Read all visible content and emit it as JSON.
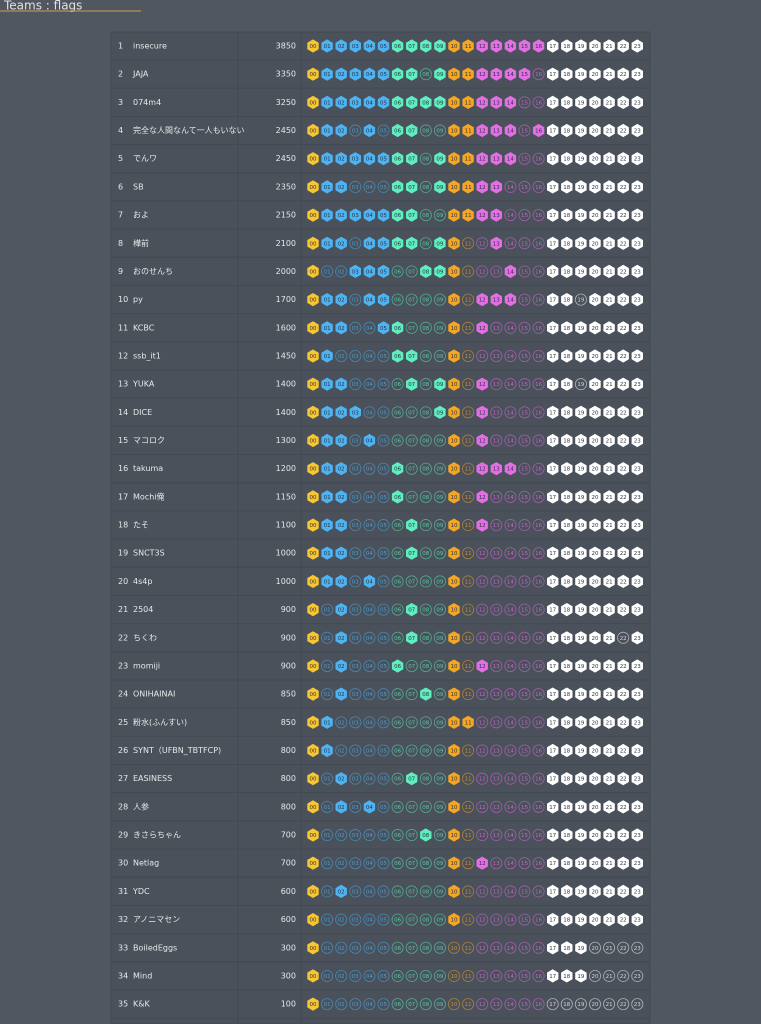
{
  "header": {
    "title": "Teams : flags"
  },
  "flags": [
    "00",
    "01",
    "02",
    "03",
    "04",
    "05",
    "06",
    "07",
    "08",
    "09",
    "10",
    "11",
    "12",
    "13",
    "14",
    "15",
    "16",
    "17",
    "18",
    "19",
    "20",
    "21",
    "22",
    "23"
  ],
  "flag_colors": [
    "#f7c631",
    "#4db3f2",
    "#4db3f2",
    "#4db3f2",
    "#4db3f2",
    "#4db3f2",
    "#5eeec0",
    "#5eeec0",
    "#5eeec0",
    "#5eeec0",
    "#f5a623",
    "#f5a623",
    "#e46ee6",
    "#e46ee6",
    "#e46ee6",
    "#e46ee6",
    "#e46ee6",
    "#ffffff",
    "#ffffff",
    "#ffffff",
    "#ffffff",
    "#ffffff",
    "#ffffff",
    "#ffffff"
  ],
  "teams": [
    {
      "rank": "1",
      "name": "insecure",
      "score": "3850",
      "solved": "111111111111111111111111"
    },
    {
      "rank": "2",
      "name": "JAJA",
      "score": "3350",
      "solved": "111111110111111101111111"
    },
    {
      "rank": "3",
      "name": "074m4",
      "score": "3250",
      "solved": "111111111111111001111111"
    },
    {
      "rank": "4",
      "name": "完全な人間なんて一人もいない",
      "score": "2450",
      "solved": "111010110011111011111111"
    },
    {
      "rank": "5",
      "name": "でんワ",
      "score": "2450",
      "solved": "111111110111111001111111"
    },
    {
      "rank": "6",
      "name": "SB",
      "score": "2350",
      "solved": "111000110111110001111111"
    },
    {
      "rank": "7",
      "name": "およ",
      "score": "2150",
      "solved": "111111110011110001111111"
    },
    {
      "rank": "8",
      "name": "樺前",
      "score": "2100",
      "solved": "111011110110010001111111"
    },
    {
      "rank": "9",
      "name": "おのせんち",
      "score": "2000",
      "solved": "100111001110001001111111"
    },
    {
      "rank": "10",
      "name": "py",
      "score": "1700",
      "solved": "111011000010111001101111"
    },
    {
      "rank": "11",
      "name": "KCBC",
      "score": "1600",
      "solved": "111001100010100001111111"
    },
    {
      "rank": "12",
      "name": "ssb_it1",
      "score": "1450",
      "solved": "110000110010000001111111"
    },
    {
      "rank": "13",
      "name": "YUKA",
      "score": "1400",
      "solved": "111000010110100001101111"
    },
    {
      "rank": "14",
      "name": "DICE",
      "score": "1400",
      "solved": "111100000110100001111111"
    },
    {
      "rank": "15",
      "name": "マコロク",
      "score": "1300",
      "solved": "111010000010100001111111"
    },
    {
      "rank": "16",
      "name": "takuma",
      "score": "1200",
      "solved": "111000100010111001111111"
    },
    {
      "rank": "17",
      "name": "Mochi俺",
      "score": "1150",
      "solved": "111000100010100001111111"
    },
    {
      "rank": "18",
      "name": "たそ",
      "score": "1100",
      "solved": "111000010010100001111111"
    },
    {
      "rank": "19",
      "name": "SNCT3S",
      "score": "1000",
      "solved": "111000010010000001111111"
    },
    {
      "rank": "20",
      "name": "4s4p",
      "score": "1000",
      "solved": "111010000010000001111111"
    },
    {
      "rank": "21",
      "name": "2504",
      "score": "900",
      "solved": "101000010010000001111111"
    },
    {
      "rank": "22",
      "name": "ちくわ",
      "score": "900",
      "solved": "101000010010000001111101"
    },
    {
      "rank": "23",
      "name": "momiji",
      "score": "900",
      "solved": "101000100010100001111111"
    },
    {
      "rank": "24",
      "name": "ONIHAINAI",
      "score": "850",
      "solved": "101000001010000001111111"
    },
    {
      "rank": "25",
      "name": "粉水(ふんすい)",
      "score": "850",
      "solved": "110000000011000001111111"
    },
    {
      "rank": "26",
      "name": "SYNT（UFBN_TBTFCP)",
      "score": "800",
      "solved": "110000000010000001111111"
    },
    {
      "rank": "27",
      "name": "EASINESS",
      "score": "800",
      "solved": "101000010010000001111111"
    },
    {
      "rank": "28",
      "name": "人参",
      "score": "800",
      "solved": "101010000010000001111111"
    },
    {
      "rank": "29",
      "name": "きさらちゃん",
      "score": "700",
      "solved": "100000001010000001111111"
    },
    {
      "rank": "30",
      "name": "Netlag",
      "score": "700",
      "solved": "100000000010100001111111"
    },
    {
      "rank": "31",
      "name": "YDC",
      "score": "600",
      "solved": "101000000010000001111111"
    },
    {
      "rank": "32",
      "name": "アノニマセン",
      "score": "600",
      "solved": "100000000010000001111111"
    },
    {
      "rank": "33",
      "name": "BoiledEggs",
      "score": "300",
      "solved": "100000000000000001110000"
    },
    {
      "rank": "34",
      "name": "Mind",
      "score": "300",
      "solved": "100000000000000001110000"
    },
    {
      "rank": "35",
      "name": "K&K",
      "score": "100",
      "solved": "100000000000000000000000"
    }
  ]
}
